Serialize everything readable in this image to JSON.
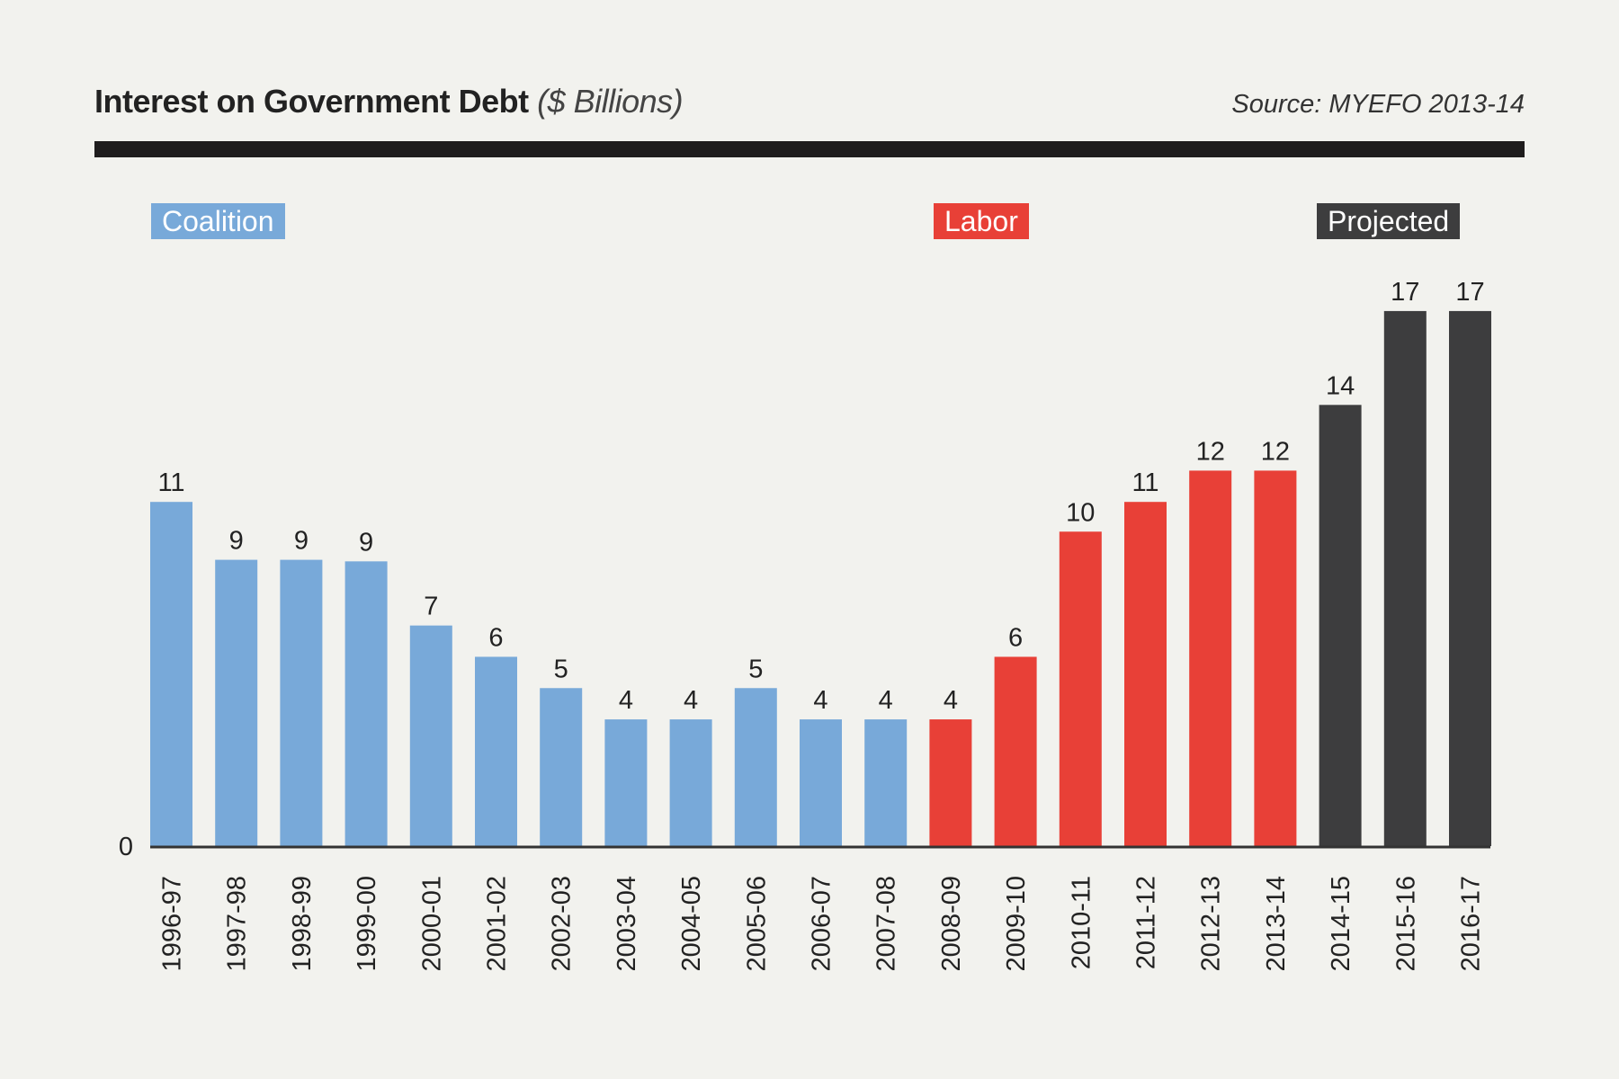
{
  "header": {
    "title": "Interest on Government Debt",
    "title_units": "($ Billions)",
    "source": "Source: MYEFO 2013-14"
  },
  "legend": [
    {
      "label": "Coalition",
      "color": "#78a9d9"
    },
    {
      "label": "Labor",
      "color": "#e84037"
    },
    {
      "label": "Projected",
      "color": "#3d3d3e"
    }
  ],
  "chart_data": {
    "type": "bar",
    "title": "Interest on Government Debt ($ Billions)",
    "xlabel": "",
    "ylabel": "",
    "ylim": [
      0,
      17
    ],
    "y_ticks": [
      "0"
    ],
    "grid": false,
    "categories": [
      "1996-97",
      "1997-98",
      "1998-99",
      "1999-00",
      "2000-01",
      "2001-02",
      "2002-03",
      "2003-04",
      "2004-05",
      "2005-06",
      "2006-07",
      "2007-08",
      "2008-09",
      "2009-10",
      "2010-11",
      "2011-12",
      "2012-13",
      "2013-14",
      "2014-15",
      "2015-16",
      "2016-17"
    ],
    "values": [
      11.0,
      9.15,
      9.15,
      9.1,
      7.05,
      6.05,
      5.05,
      4.05,
      4.05,
      5.05,
      4.05,
      4.05,
      4.05,
      6.05,
      10.05,
      11.0,
      12.0,
      12.0,
      14.1,
      17.1,
      17.1
    ],
    "value_labels": [
      "11",
      "9",
      "9",
      "9",
      "7",
      "6",
      "5",
      "4",
      "4",
      "5",
      "4",
      "4",
      "4",
      "6",
      "10",
      "11",
      "12",
      "12",
      "14",
      "17",
      "17"
    ],
    "groups": [
      "Coalition",
      "Coalition",
      "Coalition",
      "Coalition",
      "Coalition",
      "Coalition",
      "Coalition",
      "Coalition",
      "Coalition",
      "Coalition",
      "Coalition",
      "Coalition",
      "Labor",
      "Labor",
      "Labor",
      "Labor",
      "Labor",
      "Labor",
      "Projected",
      "Projected",
      "Projected"
    ],
    "colors": {
      "Coalition": "#78a9d9",
      "Labor": "#e84037",
      "Projected": "#3d3d3e"
    },
    "legend_position": "top"
  }
}
